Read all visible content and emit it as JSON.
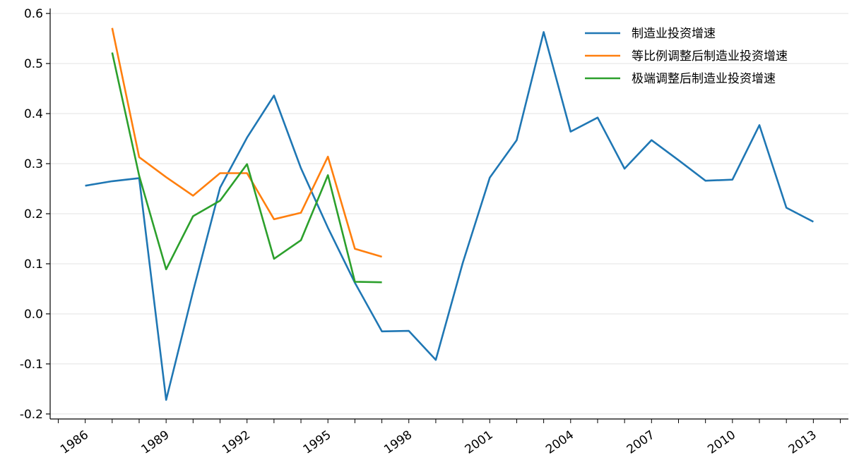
{
  "chart_data": {
    "type": "line",
    "title": "",
    "xlabel": "",
    "ylabel": "",
    "xlim": [
      1984.7,
      2014.3
    ],
    "ylim": [
      -0.21,
      0.61
    ],
    "x_ticks": [
      1986,
      1989,
      1992,
      1995,
      1998,
      2001,
      2004,
      2007,
      2010,
      2013
    ],
    "x_tick_labels": [
      "1986",
      "1989",
      "1992",
      "1995",
      "1998",
      "2001",
      "2004",
      "2007",
      "2010",
      "2013"
    ],
    "y_ticks": [
      -0.2,
      -0.1,
      0.0,
      0.1,
      0.2,
      0.3,
      0.4,
      0.5,
      0.6
    ],
    "y_tick_labels": [
      "-0.2",
      "-0.1",
      "0.0",
      "0.1",
      "0.2",
      "0.3",
      "0.4",
      "0.5",
      "0.6"
    ],
    "grid": "horizontal",
    "legend_position": "top-right",
    "series": [
      {
        "name": "制造业投资增速",
        "color": "#1f77b4",
        "x": [
          1986,
          1987,
          1988,
          1989,
          1990,
          1991,
          1992,
          1993,
          1994,
          1995,
          1996,
          1997,
          1998,
          1999,
          2000,
          2001,
          2002,
          2003,
          2004,
          2005,
          2006,
          2007,
          2008,
          2009,
          2010,
          2011,
          2012,
          2013
        ],
        "y": [
          0.256,
          0.265,
          0.271,
          -0.172,
          0.045,
          0.252,
          0.352,
          0.436,
          0.291,
          0.172,
          0.062,
          -0.035,
          -0.034,
          -0.092,
          0.102,
          0.272,
          0.347,
          0.563,
          0.364,
          0.392,
          0.29,
          0.347,
          0.307,
          0.266,
          0.268,
          0.377,
          0.212,
          0.184
        ]
      },
      {
        "name": "等比例调整后制造业投资增速",
        "color": "#ff7f0e",
        "x": [
          1987,
          1988,
          1989,
          1990,
          1991,
          1992,
          1993,
          1994,
          1995,
          1996,
          1997
        ],
        "y": [
          0.571,
          0.313,
          0.273,
          0.236,
          0.281,
          0.281,
          0.189,
          0.202,
          0.314,
          0.13,
          0.114
        ]
      },
      {
        "name": "极端调整后制造业投资增速",
        "color": "#2ca02c",
        "x": [
          1987,
          1988,
          1989,
          1990,
          1991,
          1992,
          1993,
          1994,
          1995,
          1996,
          1997
        ],
        "y": [
          0.522,
          0.276,
          0.089,
          0.195,
          0.226,
          0.299,
          0.11,
          0.147,
          0.277,
          0.064,
          0.063
        ]
      }
    ]
  }
}
